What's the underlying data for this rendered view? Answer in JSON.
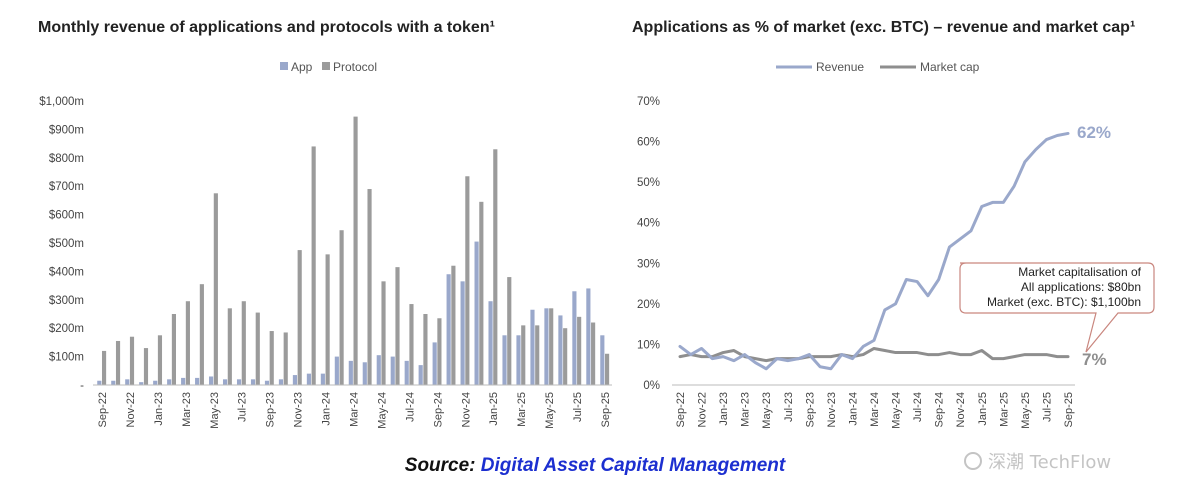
{
  "chart_data": [
    {
      "type": "bar",
      "title": "Monthly revenue of applications and protocols with a token¹",
      "categories": [
        "Sep-22",
        "Oct-22",
        "Nov-22",
        "Dec-22",
        "Jan-23",
        "Feb-23",
        "Mar-23",
        "Apr-23",
        "May-23",
        "Jun-23",
        "Jul-23",
        "Aug-23",
        "Sep-23",
        "Oct-23",
        "Nov-23",
        "Dec-23",
        "Jan-24",
        "Feb-24",
        "Mar-24",
        "Apr-24",
        "May-24",
        "Jun-24",
        "Jul-24",
        "Aug-24",
        "Sep-24",
        "Oct-24",
        "Nov-24",
        "Dec-24",
        "Jan-25",
        "Feb-25",
        "Mar-25",
        "Apr-25",
        "May-25",
        "Jun-25",
        "Jul-25",
        "Aug-25",
        "Sep-25"
      ],
      "x_tick_labels": [
        "Sep-22",
        "Nov-22",
        "Jan-23",
        "Mar-23",
        "May-23",
        "Jul-23",
        "Sep-23",
        "Nov-23",
        "Jan-24",
        "Mar-24",
        "May-24",
        "Jul-24",
        "Sep-24",
        "Nov-24",
        "Jan-25",
        "Mar-25",
        "May-25",
        "Jul-25",
        "Sep-25"
      ],
      "series": [
        {
          "name": "App",
          "color": "#9aa8cb",
          "values": [
            15,
            15,
            20,
            10,
            15,
            20,
            25,
            25,
            30,
            20,
            20,
            20,
            15,
            20,
            35,
            40,
            40,
            100,
            85,
            80,
            105,
            100,
            85,
            70,
            150,
            390,
            365,
            505,
            295,
            175,
            175,
            265,
            270,
            245,
            330,
            340,
            175
          ]
        },
        {
          "name": "Protocol",
          "color": "#9b9b9b",
          "values": [
            120,
            155,
            170,
            130,
            175,
            250,
            295,
            355,
            675,
            270,
            295,
            255,
            190,
            185,
            475,
            840,
            460,
            545,
            945,
            690,
            365,
            415,
            285,
            250,
            235,
            420,
            735,
            645,
            830,
            380,
            210,
            210,
            270,
            200,
            240,
            220,
            110
          ]
        }
      ],
      "y_tick_labels": [
        "-",
        "$100m",
        "$200m",
        "$300m",
        "$400m",
        "$500m",
        "$600m",
        "$700m",
        "$800m",
        "$900m",
        "$1,000m"
      ],
      "ylim": [
        0,
        1000
      ],
      "legend": "top-center"
    },
    {
      "type": "line",
      "title": "Applications as % of market (exc. BTC) – revenue and market cap¹",
      "x": [
        "Sep-22",
        "Oct-22",
        "Nov-22",
        "Dec-22",
        "Jan-23",
        "Feb-23",
        "Mar-23",
        "Apr-23",
        "May-23",
        "Jun-23",
        "Jul-23",
        "Aug-23",
        "Sep-23",
        "Oct-23",
        "Nov-23",
        "Dec-23",
        "Jan-24",
        "Feb-24",
        "Mar-24",
        "Apr-24",
        "May-24",
        "Jun-24",
        "Jul-24",
        "Aug-24",
        "Sep-24",
        "Oct-24",
        "Nov-24",
        "Dec-24",
        "Jan-25",
        "Feb-25",
        "Mar-25",
        "Apr-25",
        "May-25",
        "Jun-25",
        "Jul-25",
        "Aug-25",
        "Sep-25"
      ],
      "x_tick_labels": [
        "Sep-22",
        "Nov-22",
        "Jan-23",
        "Mar-23",
        "May-23",
        "Jul-23",
        "Sep-23",
        "Nov-23",
        "Jan-24",
        "Mar-24",
        "May-24",
        "Jul-24",
        "Sep-24",
        "Nov-24",
        "Jan-25",
        "Mar-25",
        "May-25",
        "Jul-25",
        "Sep-25"
      ],
      "series": [
        {
          "name": "Revenue",
          "color": "#9aa8cb",
          "values": [
            9.5,
            7.5,
            9,
            6.5,
            7,
            6,
            7.5,
            5.5,
            4,
            6.5,
            6,
            6.5,
            7.5,
            4.5,
            4,
            7.5,
            6.5,
            9.5,
            11,
            18.5,
            20,
            26,
            25.5,
            22,
            26,
            34,
            36,
            38,
            44,
            45,
            45,
            49,
            55,
            58,
            60.5,
            61.5,
            62
          ]
        },
        {
          "name": "Market cap",
          "color": "#8e8e8e",
          "values": [
            7,
            7.5,
            7,
            7,
            8,
            8.5,
            7,
            6.5,
            6,
            6.5,
            6.5,
            6.5,
            7,
            7,
            7,
            7.5,
            7,
            7.5,
            9,
            8.5,
            8,
            8,
            8,
            7.5,
            7.5,
            8,
            7.5,
            7.5,
            8.5,
            6.5,
            6.5,
            7,
            7.5,
            7.5,
            7.5,
            7,
            7
          ]
        }
      ],
      "end_labels": {
        "revenue": "62%",
        "market_cap": "7%"
      },
      "y_tick_labels": [
        "0%",
        "10%",
        "20%",
        "30%",
        "40%",
        "50%",
        "60%",
        "70%"
      ],
      "ylim": [
        0,
        70
      ],
      "legend": "top-center",
      "annotation": {
        "line1": "Market capitalisation of",
        "line2": "All applications: $80bn",
        "line3": "Market (exc. BTC): $1,100bn"
      }
    }
  ],
  "legends": {
    "left": {
      "app": "App",
      "protocol": "Protocol"
    },
    "right": {
      "revenue": "Revenue",
      "market_cap": "Market cap"
    }
  },
  "footer": {
    "source_label": "Source:",
    "source_org": "Digital Asset Capital Management"
  },
  "watermark": {
    "text": "深潮 TechFlow"
  }
}
